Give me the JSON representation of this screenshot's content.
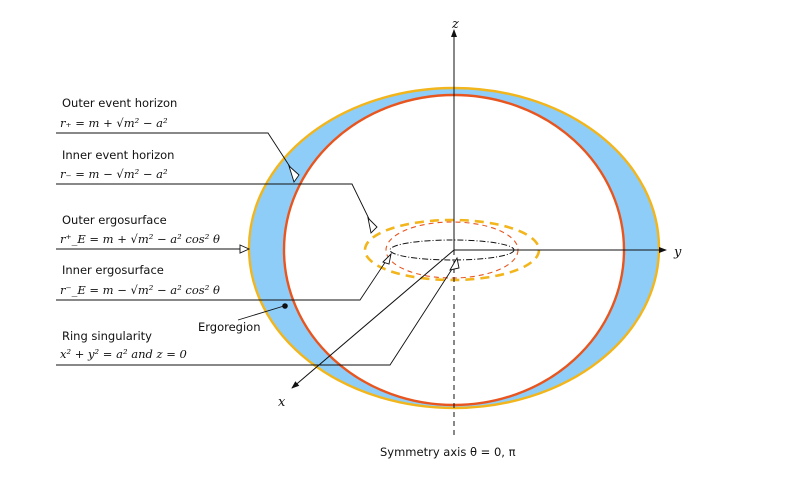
{
  "axes": {
    "z": "z",
    "y": "y",
    "x": "x"
  },
  "labels": {
    "outer_horizon": {
      "title": "Outer event horizon",
      "formula": "r₊ = m + √m² − a²"
    },
    "inner_horizon": {
      "title": "Inner event horizon",
      "formula": "r₋ = m − √m² − a²"
    },
    "outer_ergo": {
      "title": "Outer ergosurface",
      "formula": "r⁺_E = m + √m² − a² cos² θ"
    },
    "inner_ergo": {
      "title": "Inner ergosurface",
      "formula": "r⁻_E = m − √m² − a² cos² θ"
    },
    "ring": {
      "title": "Ring singularity",
      "formula": "x² + y² = a² and z = 0"
    },
    "ergoregion": "Ergoregion",
    "symmetry_axis": "Symmetry axis θ = 0, π"
  },
  "colors": {
    "ergosurface": "#f2b61c",
    "ergoregion_fill": "#8ecdf7",
    "horizon": "#e8551f",
    "ink": "#111111"
  }
}
